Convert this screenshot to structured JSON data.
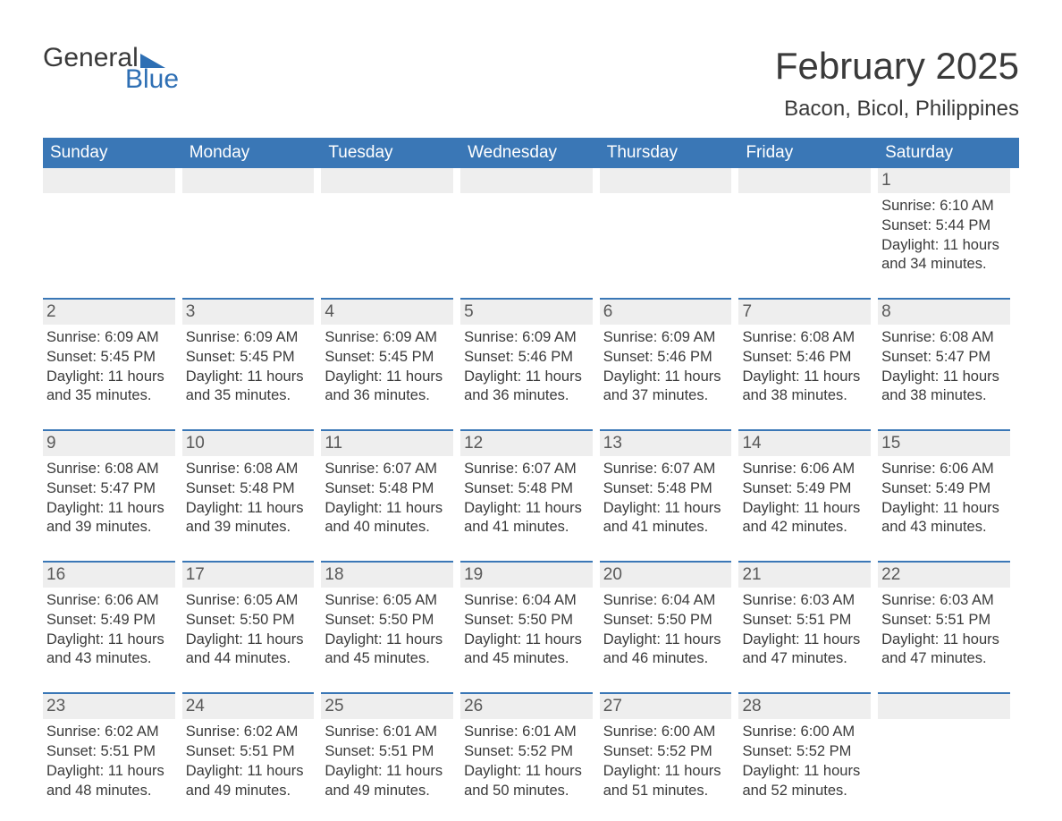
{
  "logo": {
    "word1": "General",
    "word2": "Blue"
  },
  "title": "February 2025",
  "location": "Bacon, Bicol, Philippines",
  "colors": {
    "header_bg": "#3a77b6",
    "header_text": "#ffffff",
    "daynum_bg": "#eeeeee",
    "daynum_border": "#3a77b6",
    "body_text": "#3a3a3a",
    "logo_blue": "#2e6fb4",
    "page_bg": "#ffffff"
  },
  "typography": {
    "title_fontsize": 42,
    "location_fontsize": 24,
    "dayheader_fontsize": 19,
    "daynum_fontsize": 19,
    "daytext_fontsize": 16.5
  },
  "day_headers": [
    "Sunday",
    "Monday",
    "Tuesday",
    "Wednesday",
    "Thursday",
    "Friday",
    "Saturday"
  ],
  "labels": {
    "sunrise": "Sunrise:",
    "sunset": "Sunset:",
    "daylight": "Daylight:"
  },
  "weeks": [
    [
      {
        "day": null
      },
      {
        "day": null
      },
      {
        "day": null
      },
      {
        "day": null
      },
      {
        "day": null
      },
      {
        "day": null
      },
      {
        "day": "1",
        "sunrise": "6:10 AM",
        "sunset": "5:44 PM",
        "daylight": "11 hours and 34 minutes."
      }
    ],
    [
      {
        "day": "2",
        "sunrise": "6:09 AM",
        "sunset": "5:45 PM",
        "daylight": "11 hours and 35 minutes."
      },
      {
        "day": "3",
        "sunrise": "6:09 AM",
        "sunset": "5:45 PM",
        "daylight": "11 hours and 35 minutes."
      },
      {
        "day": "4",
        "sunrise": "6:09 AM",
        "sunset": "5:45 PM",
        "daylight": "11 hours and 36 minutes."
      },
      {
        "day": "5",
        "sunrise": "6:09 AM",
        "sunset": "5:46 PM",
        "daylight": "11 hours and 36 minutes."
      },
      {
        "day": "6",
        "sunrise": "6:09 AM",
        "sunset": "5:46 PM",
        "daylight": "11 hours and 37 minutes."
      },
      {
        "day": "7",
        "sunrise": "6:08 AM",
        "sunset": "5:46 PM",
        "daylight": "11 hours and 38 minutes."
      },
      {
        "day": "8",
        "sunrise": "6:08 AM",
        "sunset": "5:47 PM",
        "daylight": "11 hours and 38 minutes."
      }
    ],
    [
      {
        "day": "9",
        "sunrise": "6:08 AM",
        "sunset": "5:47 PM",
        "daylight": "11 hours and 39 minutes."
      },
      {
        "day": "10",
        "sunrise": "6:08 AM",
        "sunset": "5:48 PM",
        "daylight": "11 hours and 39 minutes."
      },
      {
        "day": "11",
        "sunrise": "6:07 AM",
        "sunset": "5:48 PM",
        "daylight": "11 hours and 40 minutes."
      },
      {
        "day": "12",
        "sunrise": "6:07 AM",
        "sunset": "5:48 PM",
        "daylight": "11 hours and 41 minutes."
      },
      {
        "day": "13",
        "sunrise": "6:07 AM",
        "sunset": "5:48 PM",
        "daylight": "11 hours and 41 minutes."
      },
      {
        "day": "14",
        "sunrise": "6:06 AM",
        "sunset": "5:49 PM",
        "daylight": "11 hours and 42 minutes."
      },
      {
        "day": "15",
        "sunrise": "6:06 AM",
        "sunset": "5:49 PM",
        "daylight": "11 hours and 43 minutes."
      }
    ],
    [
      {
        "day": "16",
        "sunrise": "6:06 AM",
        "sunset": "5:49 PM",
        "daylight": "11 hours and 43 minutes."
      },
      {
        "day": "17",
        "sunrise": "6:05 AM",
        "sunset": "5:50 PM",
        "daylight": "11 hours and 44 minutes."
      },
      {
        "day": "18",
        "sunrise": "6:05 AM",
        "sunset": "5:50 PM",
        "daylight": "11 hours and 45 minutes."
      },
      {
        "day": "19",
        "sunrise": "6:04 AM",
        "sunset": "5:50 PM",
        "daylight": "11 hours and 45 minutes."
      },
      {
        "day": "20",
        "sunrise": "6:04 AM",
        "sunset": "5:50 PM",
        "daylight": "11 hours and 46 minutes."
      },
      {
        "day": "21",
        "sunrise": "6:03 AM",
        "sunset": "5:51 PM",
        "daylight": "11 hours and 47 minutes."
      },
      {
        "day": "22",
        "sunrise": "6:03 AM",
        "sunset": "5:51 PM",
        "daylight": "11 hours and 47 minutes."
      }
    ],
    [
      {
        "day": "23",
        "sunrise": "6:02 AM",
        "sunset": "5:51 PM",
        "daylight": "11 hours and 48 minutes."
      },
      {
        "day": "24",
        "sunrise": "6:02 AM",
        "sunset": "5:51 PM",
        "daylight": "11 hours and 49 minutes."
      },
      {
        "day": "25",
        "sunrise": "6:01 AM",
        "sunset": "5:51 PM",
        "daylight": "11 hours and 49 minutes."
      },
      {
        "day": "26",
        "sunrise": "6:01 AM",
        "sunset": "5:52 PM",
        "daylight": "11 hours and 50 minutes."
      },
      {
        "day": "27",
        "sunrise": "6:00 AM",
        "sunset": "5:52 PM",
        "daylight": "11 hours and 51 minutes."
      },
      {
        "day": "28",
        "sunrise": "6:00 AM",
        "sunset": "5:52 PM",
        "daylight": "11 hours and 52 minutes."
      },
      {
        "day": null
      }
    ]
  ]
}
